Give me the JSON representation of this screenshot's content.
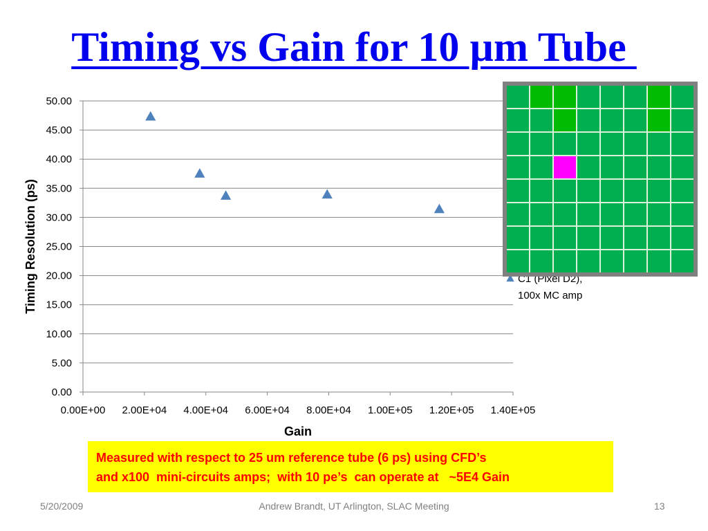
{
  "slide": {
    "title": "Timing vs Gain for 10 µm Tube ",
    "note_lines": [
      "Measured with respect to 25 um reference tube (6 ps) using CFD’s",
      "and x100  mini-circuits amps;  with 10 pe’s  can operate at   ~5E4 Gain"
    ],
    "footer": {
      "date": "5/20/2009",
      "center": "Andrew Brandt, UT Arlington,  SLAC Meeting",
      "page": "13"
    }
  },
  "colors": {
    "title": "#0000ee",
    "marker": "#4f81bd",
    "note_background": "#ffff00",
    "note_text": "#ff0000",
    "pixel_green": "#00b050",
    "pixel_light_green": "#00bb00",
    "pixel_highlight": "#ff00ff",
    "pixel_frame": "#808080"
  },
  "pixel_map": {
    "rows": 8,
    "cols": 8,
    "light_green_cells": [
      [
        0,
        1
      ],
      [
        0,
        2
      ],
      [
        1,
        2
      ],
      [
        0,
        6
      ],
      [
        1,
        6
      ]
    ],
    "highlight_cells": [
      [
        3,
        2
      ]
    ]
  },
  "chart_data": {
    "type": "scatter",
    "title": "",
    "xlabel": "Gain",
    "ylabel": "Timing Resolution  (ps)",
    "xlim": [
      0,
      140000
    ],
    "ylim": [
      0,
      50
    ],
    "x_ticks": [
      0,
      20000,
      40000,
      60000,
      80000,
      100000,
      120000,
      140000
    ],
    "x_tick_labels": [
      "0.00E+00",
      "2.00E+04",
      "4.00E+04",
      "6.00E+04",
      "8.00E+04",
      "1.00E+05",
      "1.20E+05",
      "1.40E+05"
    ],
    "y_ticks": [
      0,
      5,
      10,
      15,
      20,
      25,
      30,
      35,
      40,
      45,
      50
    ],
    "y_tick_labels": [
      "0.00",
      "5.00",
      "10.00",
      "15.00",
      "20.00",
      "25.00",
      "30.00",
      "35.00",
      "40.00",
      "45.00",
      "50.00"
    ],
    "grid": "horizontal",
    "legend_position": "right",
    "series": [
      {
        "name": "C1 (Pixel D2), 100x MC amp",
        "legend_lines": [
          "C1 (Pixel D2),",
          "100x MC amp"
        ],
        "marker": "triangle",
        "points": [
          {
            "x": 22000,
            "y": 47.3
          },
          {
            "x": 38000,
            "y": 37.5
          },
          {
            "x": 46500,
            "y": 33.7
          },
          {
            "x": 79500,
            "y": 33.9
          },
          {
            "x": 116000,
            "y": 31.4
          }
        ]
      }
    ]
  }
}
